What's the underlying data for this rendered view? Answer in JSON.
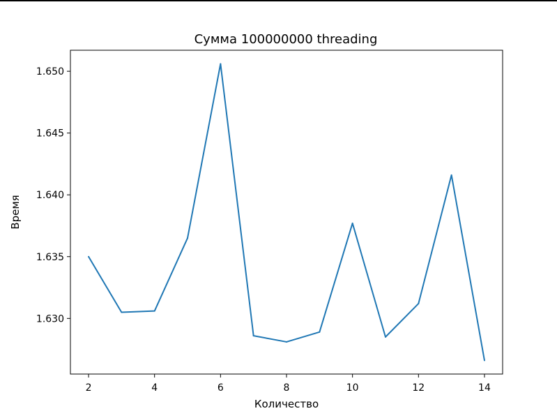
{
  "chart_data": {
    "type": "line",
    "title": "Сумма 100000000 threading",
    "xlabel": "Количество",
    "ylabel": "Время",
    "x": [
      2,
      3,
      4,
      5,
      6,
      7,
      8,
      9,
      10,
      11,
      12,
      13,
      14
    ],
    "series": [
      {
        "values": [
          1.635,
          1.6305,
          1.6306,
          1.6365,
          1.6506,
          1.6286,
          1.6281,
          1.6289,
          1.6377,
          1.6285,
          1.6312,
          1.6416,
          1.6266
        ],
        "color": "#1f77b4"
      }
    ],
    "xlim": [
      1.45,
      14.55
    ],
    "ylim": [
      1.6255,
      1.6517
    ],
    "xticks": [
      2,
      4,
      6,
      8,
      10,
      12,
      14
    ],
    "xtick_labels": [
      "2",
      "4",
      "6",
      "8",
      "10",
      "12",
      "14"
    ],
    "yticks": [
      1.63,
      1.635,
      1.64,
      1.645,
      1.65
    ],
    "ytick_labels": [
      "1.630",
      "1.635",
      "1.640",
      "1.645",
      "1.650"
    ],
    "grid": false,
    "legend": "none"
  }
}
